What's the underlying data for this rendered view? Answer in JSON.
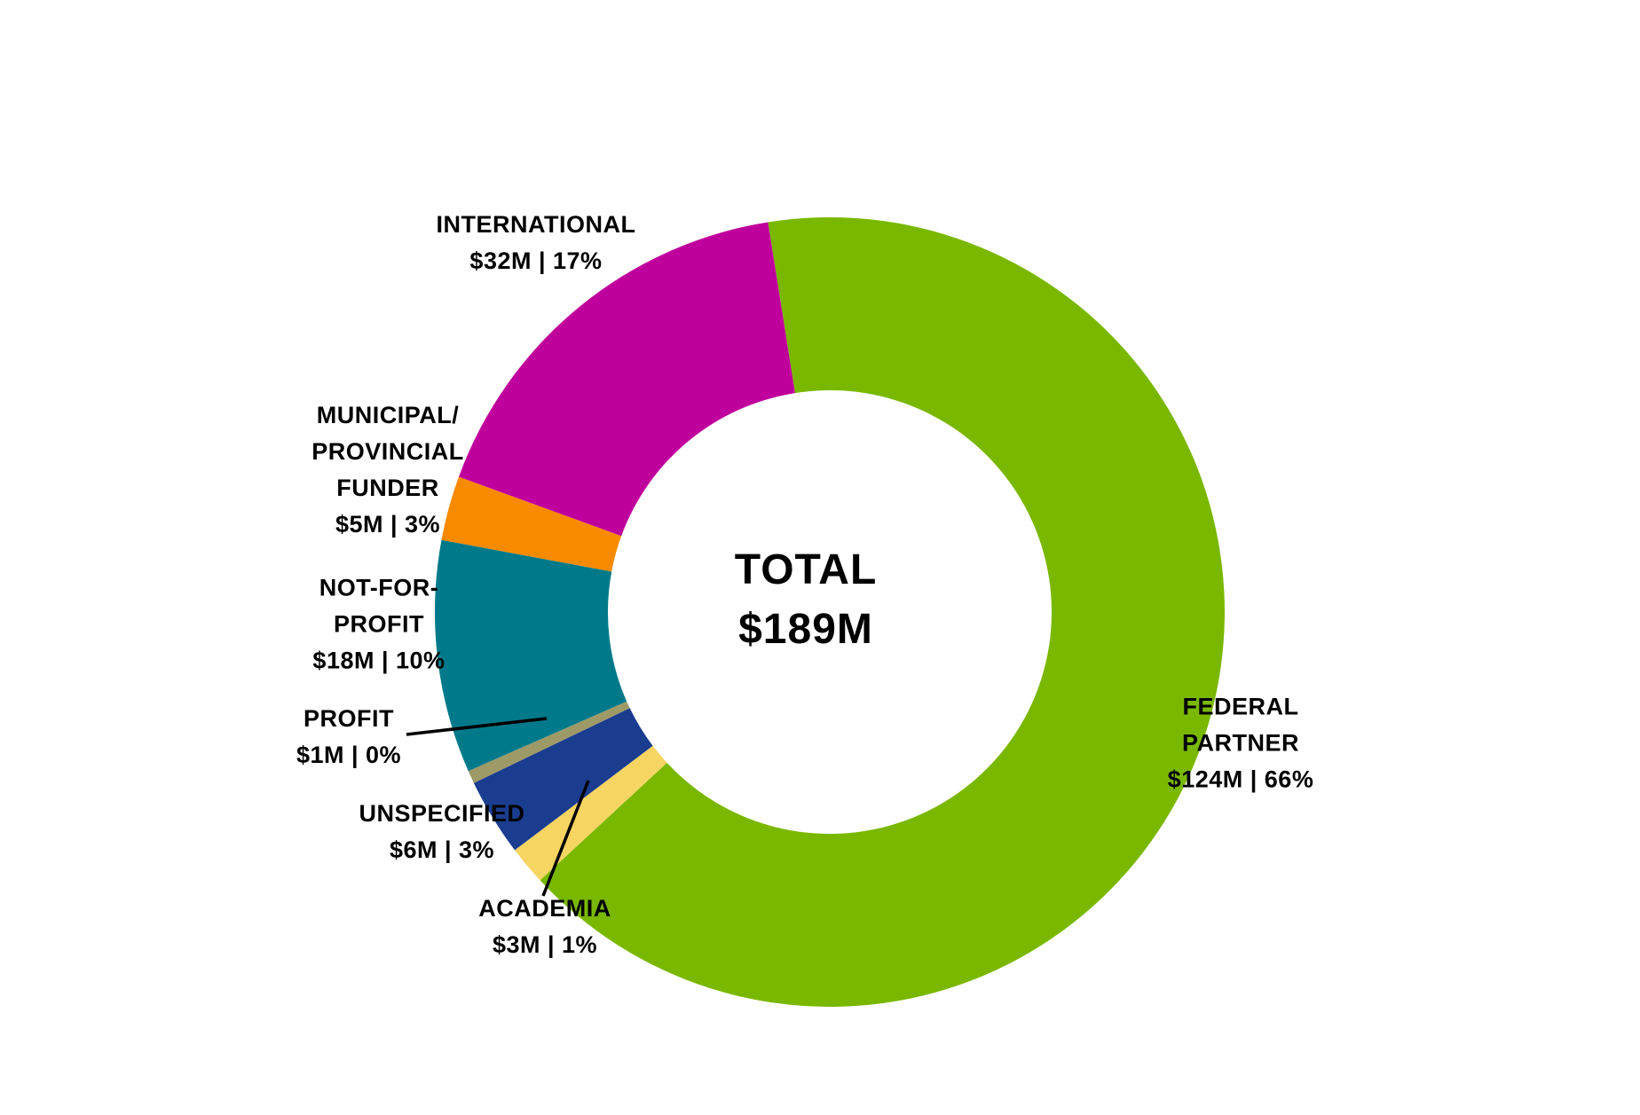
{
  "page": {
    "background": "#FFFFFF",
    "text_color": "#000000"
  },
  "chart_data": {
    "type": "pie",
    "variant": "donut",
    "center_label": {
      "title": "TOTAL",
      "value": "$189M"
    },
    "total_value_m": 189,
    "unit": "$M",
    "start_angle_deg": -9,
    "direction": "clockwise",
    "slices": [
      {
        "name": "FEDERAL PARTNER",
        "value_m": 124,
        "pct": 66,
        "color": "#7AB800",
        "label_lines": [
          "FEDERAL",
          "PARTNER",
          "$124M | 66%"
        ]
      },
      {
        "name": "ACADEMIA",
        "value_m": 3,
        "pct": 1,
        "color": "#F6D562",
        "label_lines": [
          "ACADEMIA",
          "$3M | 1%"
        ]
      },
      {
        "name": "UNSPECIFIED",
        "value_m": 6,
        "pct": 3,
        "color": "#1B3D8F",
        "label_lines": [
          "UNSPECIFIED",
          "$6M | 3%"
        ]
      },
      {
        "name": "PROFIT",
        "value_m": 1,
        "pct": 0,
        "color": "#9E9A68",
        "label_lines": [
          "PROFIT",
          "$1M | 0%"
        ]
      },
      {
        "name": "NOT-FOR-PROFIT",
        "value_m": 18,
        "pct": 10,
        "color": "#007A8A",
        "label_lines": [
          "NOT-FOR-",
          "PROFIT",
          "$18M | 10%"
        ]
      },
      {
        "name": "MUNICIPAL/PROVINCIAL FUNDER",
        "value_m": 5,
        "pct": 3,
        "color": "#F88A00",
        "label_lines": [
          "MUNICIPAL/",
          "PROVINCIAL",
          "FUNDER",
          "$5M | 3%"
        ]
      },
      {
        "name": "INTERNATIONAL",
        "value_m": 32,
        "pct": 17,
        "color": "#C0009C",
        "label_lines": [
          "INTERNATIONAL",
          "$32M | 17%"
        ]
      }
    ],
    "legend": "none",
    "labels_position": "outside-callouts"
  }
}
